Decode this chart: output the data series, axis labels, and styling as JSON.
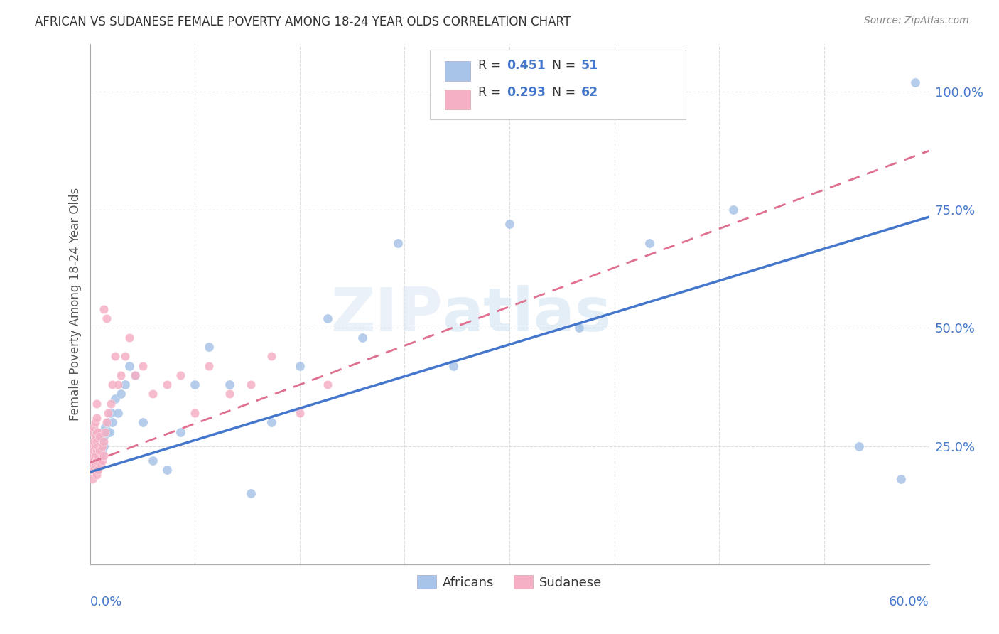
{
  "title": "AFRICAN VS SUDANESE FEMALE POVERTY AMONG 18-24 YEAR OLDS CORRELATION CHART",
  "source": "Source: ZipAtlas.com",
  "ylabel": "Female Poverty Among 18-24 Year Olds",
  "xlim": [
    0.0,
    0.6
  ],
  "ylim": [
    0.0,
    1.1
  ],
  "watermark": "ZIPatlas",
  "R_african": 0.451,
  "N_african": 51,
  "R_sudanese": 0.293,
  "N_sudanese": 62,
  "african_color": "#a8c4e8",
  "sudanese_color": "#f5b0c5",
  "african_line_color": "#4477cc",
  "sudanese_line_color": "#e07090",
  "background_color": "#ffffff",
  "axis_label_color": "#4477cc",
  "grid_color": "#dddddd",
  "african_x": [
    0.002,
    0.003,
    0.004,
    0.004,
    0.005,
    0.005,
    0.005,
    0.006,
    0.006,
    0.006,
    0.007,
    0.007,
    0.008,
    0.008,
    0.009,
    0.009,
    0.01,
    0.01,
    0.011,
    0.012,
    0.013,
    0.014,
    0.015,
    0.016,
    0.018,
    0.02,
    0.022,
    0.025,
    0.028,
    0.032,
    0.038,
    0.045,
    0.055,
    0.065,
    0.075,
    0.085,
    0.1,
    0.115,
    0.13,
    0.15,
    0.17,
    0.195,
    0.22,
    0.26,
    0.3,
    0.35,
    0.4,
    0.46,
    0.55,
    0.58,
    0.59
  ],
  "african_y": [
    0.2,
    0.22,
    0.21,
    0.24,
    0.2,
    0.23,
    0.25,
    0.21,
    0.24,
    0.27,
    0.22,
    0.25,
    0.23,
    0.26,
    0.24,
    0.28,
    0.25,
    0.27,
    0.29,
    0.28,
    0.3,
    0.28,
    0.32,
    0.3,
    0.35,
    0.32,
    0.36,
    0.38,
    0.42,
    0.4,
    0.3,
    0.22,
    0.2,
    0.28,
    0.38,
    0.46,
    0.38,
    0.15,
    0.3,
    0.42,
    0.52,
    0.48,
    0.68,
    0.42,
    0.72,
    0.5,
    0.68,
    0.75,
    0.25,
    0.18,
    1.02
  ],
  "sudanese_x": [
    0.001,
    0.001,
    0.001,
    0.002,
    0.002,
    0.002,
    0.002,
    0.002,
    0.003,
    0.003,
    0.003,
    0.003,
    0.003,
    0.004,
    0.004,
    0.004,
    0.004,
    0.004,
    0.005,
    0.005,
    0.005,
    0.005,
    0.005,
    0.005,
    0.005,
    0.006,
    0.006,
    0.006,
    0.006,
    0.007,
    0.007,
    0.007,
    0.008,
    0.008,
    0.009,
    0.009,
    0.01,
    0.01,
    0.011,
    0.012,
    0.013,
    0.015,
    0.016,
    0.018,
    0.02,
    0.022,
    0.025,
    0.028,
    0.032,
    0.038,
    0.045,
    0.055,
    0.065,
    0.075,
    0.085,
    0.1,
    0.115,
    0.13,
    0.15,
    0.17,
    0.01,
    0.012
  ],
  "sudanese_y": [
    0.2,
    0.22,
    0.25,
    0.18,
    0.21,
    0.23,
    0.25,
    0.28,
    0.2,
    0.22,
    0.24,
    0.26,
    0.29,
    0.21,
    0.23,
    0.25,
    0.27,
    0.3,
    0.19,
    0.22,
    0.24,
    0.26,
    0.28,
    0.31,
    0.34,
    0.2,
    0.23,
    0.25,
    0.28,
    0.22,
    0.24,
    0.27,
    0.21,
    0.24,
    0.22,
    0.25,
    0.23,
    0.26,
    0.28,
    0.3,
    0.32,
    0.34,
    0.38,
    0.44,
    0.38,
    0.4,
    0.44,
    0.48,
    0.4,
    0.42,
    0.36,
    0.38,
    0.4,
    0.32,
    0.42,
    0.36,
    0.38,
    0.44,
    0.32,
    0.38,
    0.54,
    0.52
  ]
}
